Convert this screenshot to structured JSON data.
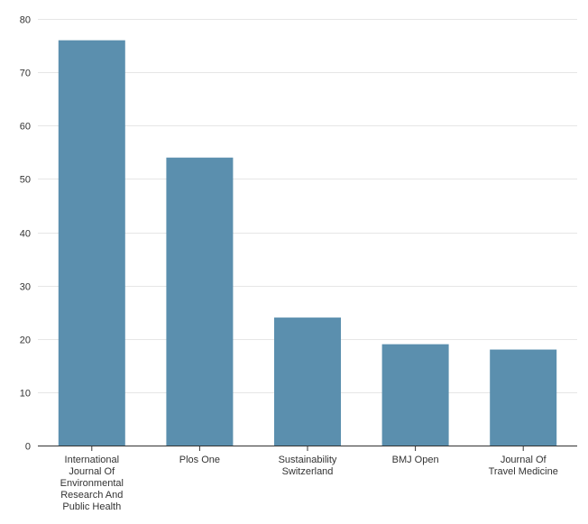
{
  "chart_data": {
    "type": "bar",
    "title": "",
    "xlabel": "",
    "ylabel": "",
    "categories": [
      "International Journal Of Environmental Research And Public Health",
      "Plos One",
      "Sustainability Switzerland",
      "BMJ Open",
      "Journal Of Travel Medicine"
    ],
    "category_label_lines": [
      [
        "International",
        "Journal Of",
        "Environmental",
        "Research And",
        "Public Health"
      ],
      [
        "Plos One"
      ],
      [
        "Sustainability",
        "Switzerland"
      ],
      [
        "BMJ Open"
      ],
      [
        "Journal Of",
        "Travel Medicine"
      ]
    ],
    "values": [
      76,
      54,
      24,
      19,
      18
    ],
    "ylim": [
      0,
      80
    ],
    "yticks": [
      0,
      10,
      20,
      30,
      40,
      50,
      60,
      70,
      80
    ],
    "grid": true,
    "legend": "none",
    "bar_color": "#5b8fae"
  }
}
